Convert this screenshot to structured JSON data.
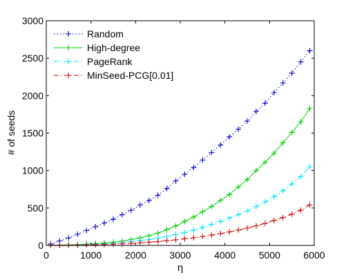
{
  "chart_data": {
    "type": "line",
    "title": "",
    "xlabel": "η",
    "ylabel": "# of seeds",
    "xlim": [
      0,
      6000
    ],
    "ylim": [
      0,
      3000
    ],
    "grid": false,
    "legend_position": "top-left",
    "x_ticks": [
      0,
      1000,
      2000,
      3000,
      4000,
      5000,
      6000
    ],
    "y_ticks": [
      0,
      500,
      1000,
      1500,
      2000,
      2500,
      3000
    ],
    "x_tick_labels": [
      "0",
      "1000",
      "2000",
      "3000",
      "4000",
      "5000",
      "6000"
    ],
    "y_tick_labels": [
      "0",
      "500",
      "1000",
      "1500",
      "2000",
      "2500",
      "3000"
    ],
    "x": [
      100,
      300,
      500,
      700,
      900,
      1100,
      1300,
      1500,
      1700,
      1900,
      2100,
      2300,
      2500,
      2700,
      2900,
      3100,
      3300,
      3500,
      3700,
      3900,
      4100,
      4300,
      4500,
      4700,
      4900,
      5100,
      5300,
      5500,
      5700,
      5900
    ],
    "series": [
      {
        "name": "Random",
        "color": "#0000cc",
        "line_style": "dotted",
        "marker": "+",
        "values": [
          20,
          60,
          100,
          150,
          200,
          250,
          300,
          350,
          410,
          470,
          540,
          600,
          670,
          760,
          860,
          950,
          1040,
          1140,
          1240,
          1340,
          1450,
          1550,
          1660,
          1790,
          1900,
          2040,
          2170,
          2300,
          2450,
          2600
        ]
      },
      {
        "name": "High-degree",
        "color": "#00cc00",
        "line_style": "solid",
        "marker": "+",
        "values": [
          5,
          5,
          8,
          12,
          18,
          24,
          34,
          44,
          60,
          80,
          100,
          130,
          165,
          210,
          260,
          320,
          380,
          450,
          520,
          600,
          680,
          780,
          880,
          1000,
          1110,
          1230,
          1370,
          1510,
          1650,
          1830
        ]
      },
      {
        "name": "PageRank",
        "color": "#00e5ff",
        "line_style": "dashdot",
        "marker": "+",
        "values": [
          5,
          5,
          5,
          8,
          12,
          16,
          22,
          30,
          40,
          52,
          65,
          80,
          98,
          120,
          145,
          175,
          205,
          240,
          280,
          320,
          365,
          410,
          460,
          520,
          580,
          650,
          730,
          820,
          920,
          1050
        ]
      },
      {
        "name": "MinSeed-PCG[0.01]",
        "color": "#cc0000",
        "line_style": "dashdot",
        "marker": "+",
        "values": [
          3,
          3,
          3,
          5,
          7,
          10,
          13,
          17,
          22,
          28,
          35,
          43,
          52,
          63,
          75,
          88,
          103,
          120,
          138,
          158,
          180,
          205,
          232,
          262,
          295,
          332,
          372,
          418,
          470,
          540
        ]
      }
    ]
  }
}
